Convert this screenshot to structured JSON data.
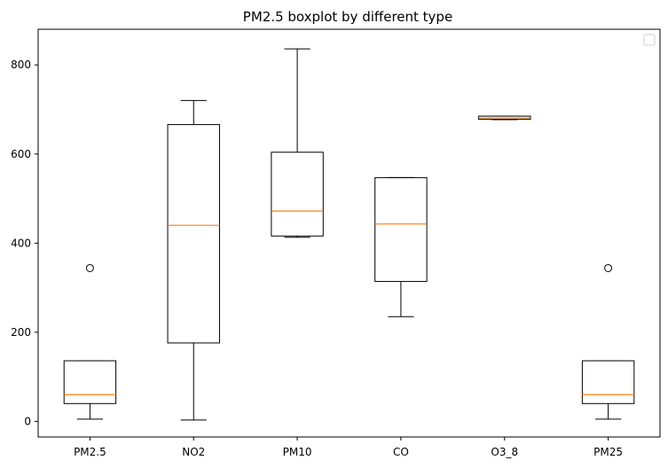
{
  "chart_data": {
    "type": "boxplot",
    "title": "PM2.5 boxplot by different type",
    "xlabel": "",
    "ylabel": "",
    "ylim": [
      -35,
      880
    ],
    "yticks": [
      0,
      200,
      400,
      600,
      800
    ],
    "categories": [
      "PM2.5",
      "NO2",
      "PM10",
      "CO",
      "O3_8",
      "PM25"
    ],
    "boxes": [
      {
        "name": "PM2.5",
        "whislo": 5,
        "q1": 40,
        "med": 60,
        "q3": 136,
        "whishi": 136,
        "fliers": [
          344
        ]
      },
      {
        "name": "NO2",
        "whislo": 3,
        "q1": 176,
        "med": 440,
        "q3": 666,
        "whishi": 720,
        "fliers": []
      },
      {
        "name": "PM10",
        "whislo": 413,
        "q1": 416,
        "med": 472,
        "q3": 604,
        "whishi": 836,
        "fliers": []
      },
      {
        "name": "CO",
        "whislo": 235,
        "q1": 314,
        "med": 443,
        "q3": 547,
        "whishi": 547,
        "fliers": []
      },
      {
        "name": "O3_8",
        "whislo": 677,
        "q1": 678,
        "med": 681,
        "q3": 685,
        "whishi": 685,
        "fliers": []
      },
      {
        "name": "PM25",
        "whislo": 5,
        "q1": 40,
        "med": 60,
        "q3": 136,
        "whishi": 136,
        "fliers": [
          344
        ]
      }
    ],
    "legend": {
      "placement": "upper right",
      "entries": []
    },
    "grid": false,
    "colors": {
      "box": "#000000",
      "median": "#ff7f0e",
      "flier": "#000000"
    }
  }
}
